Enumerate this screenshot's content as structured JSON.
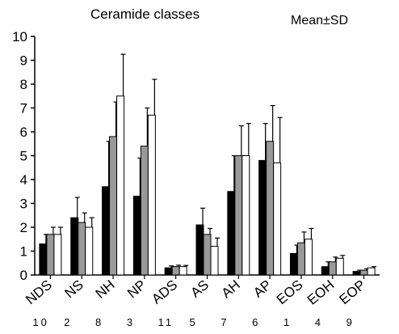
{
  "chart_data": {
    "type": "bar",
    "title": "Ceramide classes",
    "annotation": "Mean±SD",
    "xlabel": "",
    "ylabel": "",
    "ylim": [
      0,
      10
    ],
    "yticks": [
      "0",
      "1",
      "2",
      "3",
      "4",
      "5",
      "6",
      "7",
      "8",
      "9",
      "10"
    ],
    "categories": [
      "NDS",
      "NS",
      "NH",
      "NP",
      "ADS",
      "AS",
      "AH",
      "AP",
      "EOS",
      "EOH",
      "EOP"
    ],
    "sub_numbers": [
      "10",
      "2",
      "8",
      "3",
      "11",
      "5",
      "7",
      "6",
      "1",
      "4",
      "9"
    ],
    "grid": false,
    "legend": "none",
    "series": [
      {
        "color": "#000000",
        "values": [
          1.3,
          2.4,
          3.7,
          3.3,
          0.3,
          2.1,
          3.5,
          4.8,
          0.9,
          0.35,
          0.15
        ],
        "sd": [
          0.4,
          0.85,
          1.9,
          1.6,
          0.08,
          0.7,
          1.5,
          1.55,
          0.35,
          0.2,
          0.05
        ]
      },
      {
        "color": "#999999",
        "values": [
          1.7,
          2.2,
          5.8,
          5.4,
          0.35,
          1.7,
          5.0,
          5.6,
          1.35,
          0.55,
          0.2
        ],
        "sd": [
          0.3,
          0.4,
          1.45,
          1.6,
          0.06,
          0.25,
          1.25,
          1.5,
          0.45,
          0.2,
          0.06
        ]
      },
      {
        "color": "#ffffff",
        "values": [
          1.7,
          2.0,
          7.5,
          6.7,
          0.35,
          1.2,
          5.0,
          4.7,
          1.5,
          0.7,
          0.3
        ],
        "sd": [
          0.3,
          0.4,
          1.75,
          1.5,
          0.05,
          0.35,
          1.35,
          1.9,
          0.45,
          0.12,
          0.05
        ]
      }
    ]
  }
}
